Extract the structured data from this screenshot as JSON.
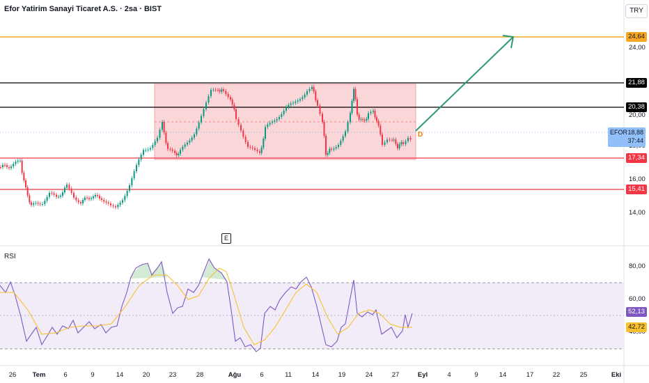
{
  "header": {
    "title": "Efor Yatirim Sanayi Ticaret A.S. · 2sa · BIST",
    "currency": "TRY"
  },
  "price_axis": {
    "ticks": [
      "24,00",
      "20,00",
      "18,00",
      "16,00",
      "14,00"
    ]
  },
  "horizontal_levels": [
    {
      "value": "24,64",
      "color": "#f5a623",
      "label_bg": "#f5a623",
      "label_fg": "#131722"
    },
    {
      "value": "21,88",
      "color": "#000000",
      "label_bg": "#000000",
      "label_fg": "#ffffff"
    },
    {
      "value": "20,38",
      "color": "#000000",
      "label_bg": "#000000",
      "label_fg": "#ffffff"
    },
    {
      "value": "17,34",
      "color": "#f23645",
      "label_bg": "#f23645",
      "label_fg": "#ffffff"
    },
    {
      "value": "15,41",
      "color": "#f23645",
      "label_bg": "#f23645",
      "label_fg": "#ffffff"
    }
  ],
  "symbol_badge": {
    "symbol": "EFOR",
    "price": "18,88",
    "countdown": "37:44"
  },
  "dividend_marker": "D",
  "event_marker": "E",
  "rsi": {
    "title": "RSI",
    "ticks": [
      "80,00",
      "60,00",
      "40,00"
    ],
    "value_label": "52,13",
    "ma_label": "42,72",
    "rsi_color": "#7e57c2",
    "ma_color": "#fbc02d",
    "value_label_bg": "#7e57c2",
    "ma_label_bg": "#fbc02d"
  },
  "time_axis": [
    "26",
    "Tem",
    "6",
    "9",
    "14",
    "20",
    "23",
    "28",
    "Ağu",
    "6",
    "11",
    "14",
    "19",
    "24",
    "27",
    "Eyl",
    "4",
    "9",
    "14",
    "17",
    "22",
    "25",
    "Eki"
  ],
  "colors": {
    "up": "#089981",
    "down": "#f23645",
    "range_box": "#f8c8cc",
    "arrow": "#2e9a6e"
  }
}
